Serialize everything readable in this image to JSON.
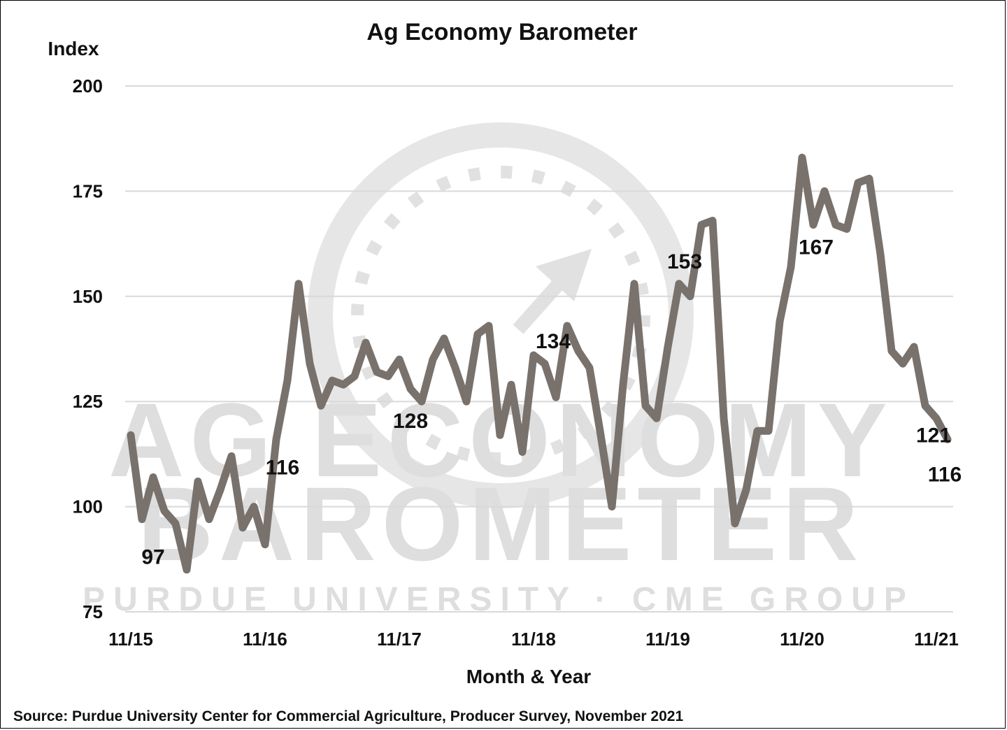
{
  "chart_data": {
    "type": "line",
    "title": "Ag Economy Barometer",
    "xlabel": "Month & Year",
    "ylabel": "Index",
    "ylim": [
      75,
      200
    ],
    "y_ticks": [
      200,
      175,
      150,
      125,
      100,
      75
    ],
    "x_tick_labels": [
      "11/15",
      "11/16",
      "11/17",
      "11/18",
      "11/19",
      "11/20",
      "11/21"
    ],
    "grid": true,
    "legend": "none",
    "line_color": "#79716c",
    "series": [
      {
        "values": [
          117,
          97,
          107,
          99,
          96,
          85,
          106,
          97,
          104,
          112,
          95,
          100,
          91,
          116,
          130,
          153,
          134,
          124,
          130,
          129,
          131,
          139,
          132,
          131,
          135,
          128,
          125,
          135,
          140,
          133,
          125,
          141,
          143,
          117,
          129,
          113,
          136,
          134,
          126,
          143,
          137,
          133,
          117,
          100,
          129,
          153,
          124,
          121,
          138,
          153,
          150,
          167,
          168,
          121,
          96,
          104,
          118,
          118,
          144,
          157,
          183,
          167,
          175,
          167,
          166,
          177,
          178,
          160,
          137,
          134,
          138,
          124,
          121,
          116
        ]
      }
    ],
    "data_labels": [
      {
        "index": 1,
        "text": "97"
      },
      {
        "index": 13,
        "text": "116"
      },
      {
        "index": 25,
        "text": "128"
      },
      {
        "index": 37,
        "text": "134"
      },
      {
        "index": 49,
        "text": "153"
      },
      {
        "index": 61,
        "text": "167"
      },
      {
        "index": 72,
        "text": "121"
      },
      {
        "index": 73,
        "text": "116"
      }
    ],
    "watermark": {
      "line1": "AG ECONOMY",
      "line2": "BAROMETER",
      "line3": "PURDUE UNIVERSITY · CME GROUP"
    },
    "source": "Source: Purdue University Center for Commercial Agriculture, Producer Survey, November 2021"
  }
}
